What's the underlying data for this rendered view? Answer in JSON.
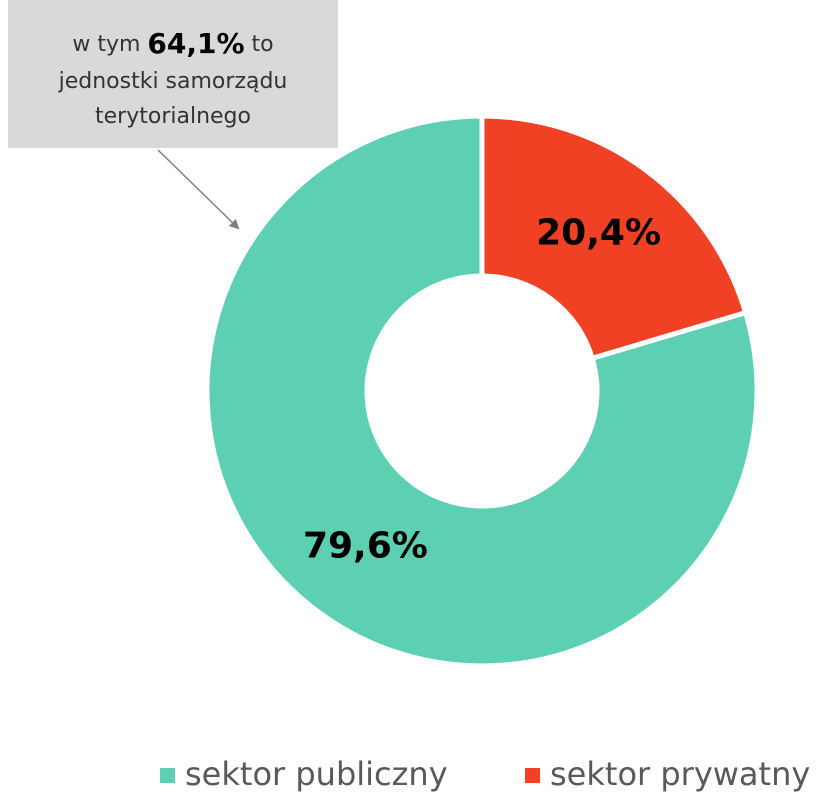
{
  "chart_data": {
    "type": "donut",
    "categories": [
      "sektor publiczny",
      "sektor prywatny"
    ],
    "values": [
      79.6,
      20.4
    ],
    "value_labels": [
      "79,6%",
      "20,4%"
    ],
    "colors": [
      "#5dcfb2",
      "#f04125"
    ],
    "legend": "bottom",
    "annotation": {
      "lead": "w tym",
      "highlight": "64,1%",
      "rest": "to",
      "lines": [
        "jednostki samorządu",
        "terytorialnego"
      ]
    }
  }
}
